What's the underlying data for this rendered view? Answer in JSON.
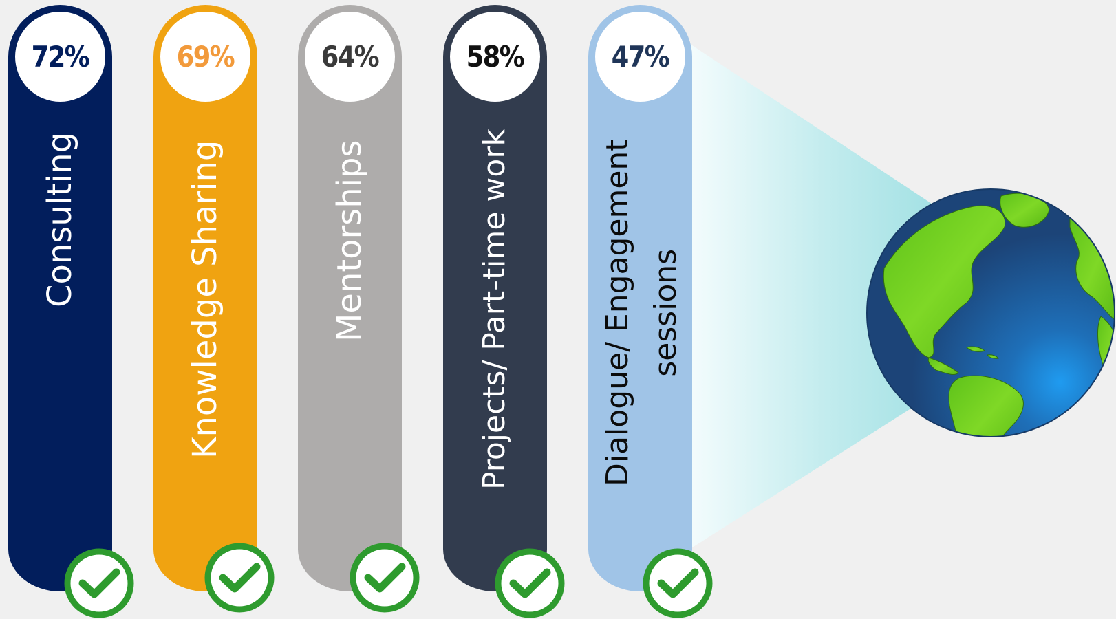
{
  "items": [
    {
      "percent": "72%",
      "label_line1": "Consulting",
      "label_line2": "",
      "pill_color": "#021e5c",
      "percent_color": "#021e5c"
    },
    {
      "percent": "69%",
      "label_line1": "Knowledge Sharing",
      "label_line2": "",
      "pill_color": "#f0a311",
      "percent_color": "#f29a3b"
    },
    {
      "percent": "64%",
      "label_line1": "Mentorships",
      "label_line2": "",
      "pill_color": "#aeacab",
      "percent_color": "#3a3a3a"
    },
    {
      "percent": "58%",
      "label_line1": "Projects/ Part-time work",
      "label_line2": "",
      "pill_color": "#323c4e",
      "percent_color": "#111111"
    },
    {
      "percent": "47%",
      "label_line1": "Dialogue/ Engagement",
      "label_line2": "sessions",
      "pill_color": "#a0c4e7",
      "percent_color": "#1f3558"
    }
  ],
  "colors": {
    "background": "#f0f0f0",
    "check_ring": "#2e9b2e",
    "check_mark": "#2e9b2e",
    "beam": "#a7e3e6",
    "ocean": "#1e4e82",
    "land": "#6ecf1a"
  },
  "icons": {
    "check": "check-circle-icon",
    "globe": "globe-icon"
  }
}
